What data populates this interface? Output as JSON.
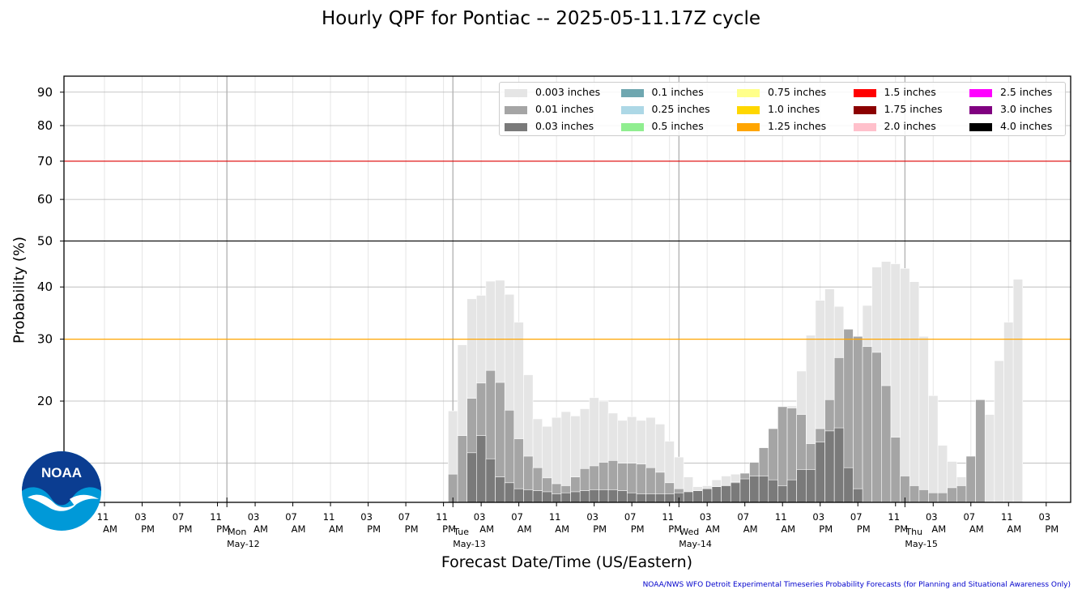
{
  "title": "Hourly QPF for Pontiac -- 2025-05-11.17Z cycle",
  "footer": "NOAA/NWS WFO Detroit Experimental Timeseries Probability Forecasts (for Planning and Situational Awareness Only)",
  "logo_text": "NOAA",
  "chart_data": {
    "type": "bar",
    "title": "Hourly QPF for Pontiac -- 2025-05-11.17Z cycle",
    "xlabel": "Forecast Date/Time (US/Eastern)",
    "ylabel": "Probability (%)",
    "y_scale": "sqrt",
    "ylim": [
      8,
      95
    ],
    "yticks": [
      20,
      30,
      40,
      50,
      60,
      70,
      80,
      90
    ],
    "grid": true,
    "legend_position": "top-right",
    "reference_lines": [
      {
        "value": 50,
        "color": "#000000"
      },
      {
        "value": 70,
        "color": "#dd0000"
      },
      {
        "value": 30,
        "color": "#ffa500"
      }
    ],
    "x_ticks": [
      {
        "time": "11",
        "ampm": "AM"
      },
      {
        "time": "03",
        "ampm": "PM"
      },
      {
        "time": "07",
        "ampm": "PM"
      },
      {
        "time": "11",
        "ampm": "PM"
      },
      {
        "time": "03",
        "ampm": "AM"
      },
      {
        "time": "07",
        "ampm": "AM"
      },
      {
        "time": "11",
        "ampm": "AM"
      },
      {
        "time": "03",
        "ampm": "PM"
      },
      {
        "time": "07",
        "ampm": "PM"
      },
      {
        "time": "11",
        "ampm": "PM"
      },
      {
        "time": "03",
        "ampm": "AM"
      },
      {
        "time": "07",
        "ampm": "AM"
      },
      {
        "time": "11",
        "ampm": "AM"
      },
      {
        "time": "03",
        "ampm": "PM"
      },
      {
        "time": "07",
        "ampm": "PM"
      },
      {
        "time": "11",
        "ampm": "PM"
      },
      {
        "time": "03",
        "ampm": "AM"
      },
      {
        "time": "07",
        "ampm": "AM"
      },
      {
        "time": "11",
        "ampm": "AM"
      },
      {
        "time": "03",
        "ampm": "PM"
      },
      {
        "time": "07",
        "ampm": "PM"
      },
      {
        "time": "11",
        "ampm": "PM"
      },
      {
        "time": "03",
        "ampm": "AM"
      },
      {
        "time": "07",
        "ampm": "AM"
      },
      {
        "time": "11",
        "ampm": "AM"
      },
      {
        "time": "03",
        "ampm": "PM"
      }
    ],
    "day_labels": [
      {
        "day": "Mon",
        "date": "May-12",
        "after_tick": 3
      },
      {
        "day": "Tue",
        "date": "May-13",
        "after_tick": 9
      },
      {
        "day": "Wed",
        "date": "May-14",
        "after_tick": 15
      },
      {
        "day": "Thu",
        "date": "May-15",
        "after_tick": 21
      }
    ],
    "legend": [
      {
        "label": "0.003 inches",
        "color": "#e5e5e5"
      },
      {
        "label": "0.01 inches",
        "color": "#a5a5a5"
      },
      {
        "label": "0.03 inches",
        "color": "#7a7a7a"
      },
      {
        "label": "0.1 inches",
        "color": "#6fa7b0"
      },
      {
        "label": "0.25 inches",
        "color": "#add8e6"
      },
      {
        "label": "0.5 inches",
        "color": "#90ee90"
      },
      {
        "label": "0.75 inches",
        "color": "#ffff8a"
      },
      {
        "label": "1.0 inches",
        "color": "#ffd700"
      },
      {
        "label": "1.25 inches",
        "color": "#ffa500"
      },
      {
        "label": "1.5 inches",
        "color": "#ff0000"
      },
      {
        "label": "1.75 inches",
        "color": "#8b0000"
      },
      {
        "label": "2.0 inches",
        "color": "#ffc0cb"
      },
      {
        "label": "2.5 inches",
        "color": "#ff00ff"
      },
      {
        "label": "3.0 inches",
        "color": "#800080"
      },
      {
        "label": "4.0 inches",
        "color": "#000000"
      }
    ],
    "series": [
      {
        "name": "0.003 inches",
        "start_hour_offset": 37,
        "values": [
          18.6,
          29,
          37.6,
          38.3,
          41.2,
          41.4,
          38.5,
          33.1,
          24,
          17.5,
          16.5,
          17.7,
          18.5,
          17.9,
          18.9,
          20.5,
          20,
          18.3,
          17.3,
          17.8,
          17.3,
          17.7,
          16.8,
          14.6,
          12.7,
          10.5,
          9.5,
          9.6,
          10.2,
          10.6,
          10.8,
          10.8,
          11.4,
          11.9,
          12.7,
          14.8,
          19.3,
          24.6,
          30.7,
          37.3,
          39.6,
          36.1,
          29.1,
          29.1,
          36.3,
          44.2,
          45.4,
          44.9,
          43.9,
          41.1,
          30.5,
          20.8,
          14.1,
          12.2,
          10.5,
          9.4,
          13.6,
          18.1,
          26.3,
          33.1,
          41.6
        ]
      },
      {
        "name": "0.01 inches",
        "start_hour_offset": 37,
        "values": [
          10.8,
          15.3,
          20.4,
          22.7,
          24.7,
          22.8,
          18.7,
          14.9,
          12.8,
          11.5,
          10.4,
          9.8,
          9.6,
          10.5,
          11.4,
          11.7,
          12.1,
          12.3,
          12,
          12,
          11.9,
          11.5,
          11,
          9.9,
          9.3,
          8.9,
          8.6,
          8.7,
          8.9,
          9.3,
          10,
          10.9,
          12.1,
          13.8,
          16.2,
          19.2,
          19,
          18.1,
          14.3,
          16.2,
          20.2,
          26.8,
          31.8,
          30.5,
          28.7,
          27.7,
          22.3,
          15.1,
          10.6,
          9.6,
          9.2,
          8.9,
          8.9,
          9.4,
          9.6,
          12.8,
          20.2
        ]
      },
      {
        "name": "0.03 inches",
        "start_hour_offset": 39,
        "values": [
          13.2,
          15.3,
          12.5,
          10.5,
          9.9,
          9.3,
          9.2,
          9.1,
          9.0,
          8.8,
          8.9,
          9.0,
          9.1,
          9.2,
          9.2,
          9.2,
          9.1,
          8.9,
          8.8,
          8.8,
          8.8,
          8.8,
          8.9,
          9.0,
          9.1,
          9.3,
          9.5,
          9.6,
          9.9,
          10.3,
          10.6,
          10.6,
          10.2,
          9.6,
          10.2,
          11.3,
          11.3,
          14.5,
          15.9,
          16.3,
          11.5,
          9.3
        ]
      }
    ]
  }
}
